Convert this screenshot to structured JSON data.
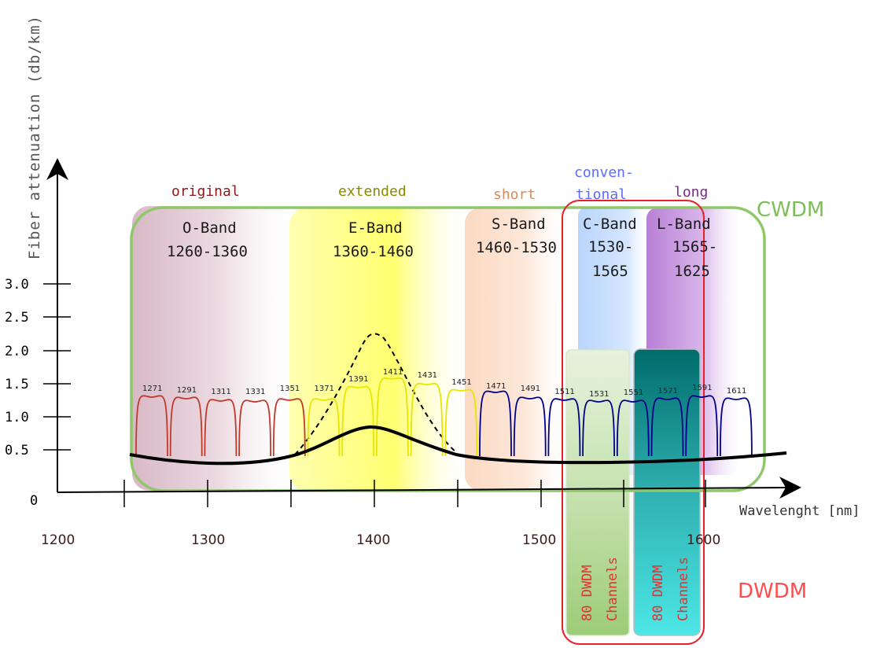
{
  "colors": {
    "o_band": "#c0392b",
    "e_band": "#e6e600",
    "s_band": "#00008b",
    "cwdm": "#8fc76a",
    "dwdm": "#e8202a",
    "curve": "#000000",
    "grid_axis": "#000000",
    "label_original": "#8b1a1a",
    "label_extended": "#8a8a00",
    "label_short": "#d98c5a",
    "label_conventional": "#5a6cff",
    "label_long": "#7a2a8a",
    "cwdm_text": "#7cbf5a",
    "dwdm_text": "#ff4d4d",
    "channel_text": "#e83030"
  },
  "axes": {
    "y_title": "Fiber attenuation (db/km)",
    "y_ticks": [
      "3.0",
      "2.5",
      "2.0",
      "1.5",
      "1.0",
      "0.5",
      "0"
    ],
    "x_ticks": [
      "1200",
      "1300",
      "1400",
      "1500",
      "1600"
    ],
    "x_title": "Wavelenght [nm]"
  },
  "bands": [
    {
      "category": "original",
      "name": "O-Band",
      "range": "1260-1360"
    },
    {
      "category": "extended",
      "name": "E-Band",
      "range": "1360-1460"
    },
    {
      "category": "short",
      "name": "S-Band",
      "range": "1460-1530"
    },
    {
      "category_line1": "conven-",
      "category_line2": "tional",
      "name": "C-Band",
      "range_line1": "1530-",
      "range_line2": "1565"
    },
    {
      "category": "long",
      "name": "L-Band",
      "range_line1": "1565-",
      "range_line2": "1625"
    }
  ],
  "cwdm_label": "CWDM",
  "dwdm_label": "DWDM",
  "dwdm_blocks": [
    {
      "line1": "80 DWDM",
      "line2": "Channels"
    },
    {
      "line1": "80 DWDM",
      "line2": "Channels"
    }
  ],
  "channels": [
    "1271",
    "1291",
    "1311",
    "1331",
    "1351",
    "1371",
    "1391",
    "1411",
    "1431",
    "1451",
    "1471",
    "1491",
    "1511",
    "1531",
    "1551",
    "1571",
    "1591",
    "1611"
  ]
}
